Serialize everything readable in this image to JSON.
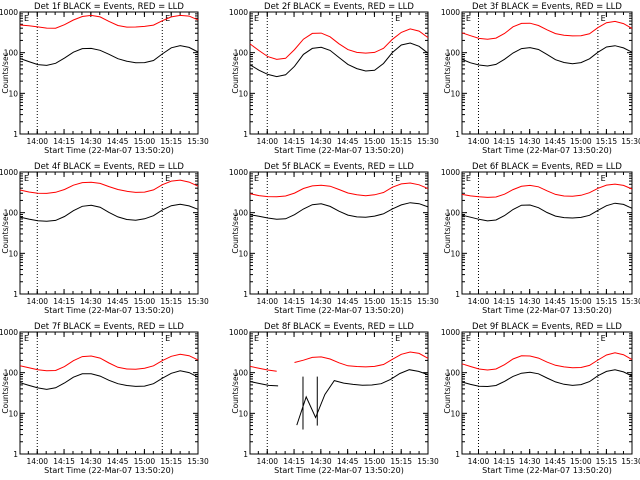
{
  "chart_data": [
    {
      "type": "line",
      "title": "Det 1f BLACK = Events, RED = LLD",
      "xlabel": "Start Time (22-Mar-07 13:50:20)",
      "ylabel": "Counts/sec",
      "yscale": "log",
      "ylim": [
        1,
        1000
      ],
      "x_ticks": [
        "14:00",
        "14:15",
        "14:30",
        "14:45",
        "15:00",
        "15:15",
        "15:30"
      ],
      "y_ticks": [
        "1",
        "10",
        "100",
        "1000"
      ],
      "marker_label": "E",
      "dotted_lines": [
        "14:00",
        "15:10"
      ],
      "series": [
        {
          "color": "#ff0000",
          "values": [
            480,
            450,
            420,
            400,
            410,
            500,
            640,
            760,
            800,
            750,
            600,
            480,
            430,
            420,
            430,
            470,
            620,
            780,
            840,
            780,
            620
          ]
        },
        {
          "color": "#000000",
          "values": [
            70,
            60,
            52,
            50,
            55,
            72,
            100,
            125,
            130,
            118,
            92,
            70,
            60,
            56,
            58,
            66,
            95,
            130,
            145,
            132,
            105
          ]
        }
      ]
    },
    {
      "type": "line",
      "title": "Det 2f BLACK = Events, RED = LLD",
      "xlabel": "Start Time (22-Mar-07 13:50:20)",
      "ylabel": "Counts/sec",
      "yscale": "log",
      "ylim": [
        1,
        1000
      ],
      "x_ticks": [
        "14:00",
        "14:15",
        "14:30",
        "14:45",
        "15:00",
        "15:15",
        "15:30"
      ],
      "y_ticks": [
        "1",
        "10",
        "100",
        "1000"
      ],
      "marker_label": "E",
      "dotted_lines": [
        "14:00",
        "15:10"
      ],
      "series": [
        {
          "color": "#ff0000",
          "values": [
            160,
            110,
            80,
            70,
            75,
            120,
            210,
            290,
            300,
            250,
            170,
            120,
            100,
            95,
            100,
            130,
            220,
            320,
            380,
            330,
            230
          ]
        },
        {
          "color": "#000000",
          "values": [
            50,
            38,
            30,
            26,
            28,
            45,
            90,
            130,
            140,
            115,
            75,
            50,
            40,
            36,
            38,
            55,
            100,
            150,
            170,
            145,
            100
          ]
        }
      ]
    },
    {
      "type": "line",
      "title": "Det 3f BLACK = Events, RED = LLD",
      "xlabel": "Start Time (22-Mar-07 13:50:20)",
      "ylabel": "Counts/sec",
      "yscale": "log",
      "ylim": [
        1,
        1000
      ],
      "x_ticks": [
        "14:00",
        "14:15",
        "14:30",
        "14:45",
        "15:00",
        "15:15",
        "15:30"
      ],
      "y_ticks": [
        "1",
        "10",
        "100",
        "1000"
      ],
      "marker_label": "E",
      "dotted_lines": [
        "14:00",
        "15:10"
      ],
      "series": [
        {
          "color": "#ff0000",
          "values": [
            300,
            260,
            230,
            220,
            230,
            290,
            420,
            520,
            540,
            480,
            370,
            290,
            260,
            255,
            265,
            300,
            420,
            540,
            570,
            510,
            400
          ]
        },
        {
          "color": "#000000",
          "values": [
            70,
            58,
            50,
            46,
            50,
            68,
            100,
            130,
            135,
            118,
            88,
            66,
            58,
            55,
            58,
            70,
            100,
            135,
            150,
            135,
            105
          ]
        }
      ]
    },
    {
      "type": "line",
      "title": "Det 4f BLACK = Events, RED = LLD",
      "xlabel": "Start Time (22-Mar-07 13:50:20)",
      "ylabel": "Counts/sec",
      "yscale": "log",
      "ylim": [
        1,
        1000
      ],
      "x_ticks": [
        "14:00",
        "14:15",
        "14:30",
        "14:45",
        "15:00",
        "15:15",
        "15:30"
      ],
      "y_ticks": [
        "1",
        "10",
        "100",
        "1000"
      ],
      "marker_label": "E",
      "dotted_lines": [
        "14:00",
        "15:10"
      ],
      "series": [
        {
          "color": "#ff0000",
          "values": [
            360,
            330,
            310,
            300,
            310,
            360,
            470,
            560,
            580,
            530,
            430,
            360,
            330,
            320,
            330,
            370,
            480,
            580,
            620,
            570,
            460
          ]
        },
        {
          "color": "#000000",
          "values": [
            80,
            70,
            62,
            60,
            64,
            82,
            115,
            145,
            150,
            132,
            100,
            80,
            70,
            66,
            70,
            82,
            115,
            150,
            165,
            150,
            120
          ]
        }
      ]
    },
    {
      "type": "line",
      "title": "Det 5f BLACK = Events, RED = LLD",
      "xlabel": "Start Time (22-Mar-07 13:50:20)",
      "ylabel": "Counts/sec",
      "yscale": "log",
      "ylim": [
        1,
        1000
      ],
      "x_ticks": [
        "14:00",
        "14:15",
        "14:30",
        "14:45",
        "15:00",
        "15:15",
        "15:30"
      ],
      "y_ticks": [
        "1",
        "10",
        "100",
        "1000"
      ],
      "marker_label": "E",
      "dotted_lines": [
        "14:00",
        "15:10"
      ],
      "series": [
        {
          "color": "#ff0000",
          "values": [
            300,
            270,
            250,
            240,
            250,
            300,
            400,
            470,
            480,
            440,
            360,
            300,
            280,
            270,
            280,
            310,
            410,
            500,
            540,
            500,
            400
          ]
        },
        {
          "color": "#000000",
          "values": [
            90,
            80,
            72,
            68,
            72,
            92,
            125,
            155,
            160,
            140,
            110,
            90,
            80,
            76,
            80,
            92,
            125,
            160,
            180,
            165,
            135
          ]
        }
      ]
    },
    {
      "type": "line",
      "title": "Det 6f BLACK = Events, RED = LLD",
      "xlabel": "Start Time (22-Mar-07 13:50:20)",
      "ylabel": "Counts/sec",
      "yscale": "log",
      "ylim": [
        1,
        1000
      ],
      "x_ticks": [
        "14:00",
        "14:15",
        "14:30",
        "14:45",
        "15:00",
        "15:15",
        "15:30"
      ],
      "y_ticks": [
        "1",
        "10",
        "100",
        "1000"
      ],
      "marker_label": "E",
      "dotted_lines": [
        "14:00",
        "15:10"
      ],
      "series": [
        {
          "color": "#ff0000",
          "values": [
            290,
            260,
            240,
            230,
            240,
            290,
            380,
            450,
            460,
            420,
            340,
            285,
            265,
            258,
            265,
            300,
            390,
            480,
            520,
            480,
            380
          ]
        },
        {
          "color": "#000000",
          "values": [
            85,
            75,
            68,
            64,
            68,
            86,
            118,
            148,
            152,
            134,
            104,
            84,
            75,
            72,
            75,
            87,
            118,
            152,
            170,
            155,
            125
          ]
        }
      ]
    },
    {
      "type": "line",
      "title": "Det 7f BLACK = Events, RED = LLD",
      "xlabel": "Start Time (22-Mar-07 13:50:20)",
      "ylabel": "Counts/sec",
      "yscale": "log",
      "ylim": [
        1,
        1000
      ],
      "x_ticks": [
        "14:00",
        "14:15",
        "14:30",
        "14:45",
        "15:00",
        "15:15",
        "15:30"
      ],
      "y_ticks": [
        "1",
        "10",
        "100",
        "1000"
      ],
      "marker_label": "E",
      "dotted_lines": [
        "14:00",
        "15:10"
      ],
      "series": [
        {
          "color": "#ff0000",
          "values": [
            150,
            130,
            115,
            110,
            115,
            145,
            200,
            245,
            250,
            225,
            175,
            140,
            125,
            120,
            125,
            145,
            200,
            260,
            290,
            260,
            200
          ]
        },
        {
          "color": "#000000",
          "values": [
            55,
            48,
            43,
            40,
            43,
            55,
            75,
            92,
            95,
            85,
            66,
            53,
            47,
            45,
            47,
            55,
            75,
            96,
            108,
            98,
            78
          ]
        }
      ]
    },
    {
      "type": "line",
      "title": "Det 8f BLACK = Events, RED = LLD",
      "xlabel": "Start Time (22-Mar-07 13:50:20)",
      "ylabel": "Counts/sec",
      "yscale": "log",
      "ylim": [
        1,
        1000
      ],
      "x_ticks": [
        "14:00",
        "14:15",
        "14:30",
        "14:45",
        "15:00",
        "15:15",
        "15:30"
      ],
      "y_ticks": [
        "1",
        "10",
        "100",
        "1000"
      ],
      "marker_label": "E",
      "dotted_lines": [
        "14:00",
        "15:10"
      ],
      "series": [
        {
          "color": "#ff0000",
          "values": [
            140,
            125,
            115,
            110,
            null,
            180,
            200,
            230,
            240,
            220,
            180,
            150,
            140,
            135,
            140,
            160,
            220,
            290,
            320,
            290,
            220
          ],
          "gaps_after": [
            3
          ]
        },
        {
          "color": "#000000",
          "values": [
            60,
            55,
            50,
            48,
            null,
            5,
            25,
            8,
            30,
            65,
            55,
            50,
            48,
            50,
            55,
            70,
            95,
            115,
            105,
            90
          ],
          "gaps_after": [
            3
          ],
          "dips": [
            {
              "at": "14:20",
              "value": 4
            },
            {
              "at": "14:28",
              "value": 5
            }
          ]
        }
      ]
    },
    {
      "type": "line",
      "title": "Det 9f BLACK = Events, RED = LLD",
      "xlabel": "Start Time (22-Mar-07 13:50:20)",
      "ylabel": "Counts/sec",
      "yscale": "log",
      "ylim": [
        1,
        1000
      ],
      "x_ticks": [
        "14:00",
        "14:15",
        "14:30",
        "14:45",
        "15:00",
        "15:15",
        "15:30"
      ],
      "y_ticks": [
        "1",
        "10",
        "100",
        "1000"
      ],
      "marker_label": "E",
      "dotted_lines": [
        "14:00",
        "15:10"
      ],
      "series": [
        {
          "color": "#ff0000",
          "values": [
            160,
            140,
            125,
            120,
            125,
            155,
            210,
            255,
            260,
            235,
            185,
            150,
            135,
            130,
            135,
            155,
            210,
            270,
            300,
            270,
            210
          ]
        },
        {
          "color": "#000000",
          "values": [
            60,
            53,
            47,
            45,
            47,
            60,
            82,
            100,
            104,
            93,
            72,
            58,
            52,
            50,
            52,
            60,
            82,
            105,
            118,
            107,
            85
          ]
        }
      ]
    }
  ]
}
